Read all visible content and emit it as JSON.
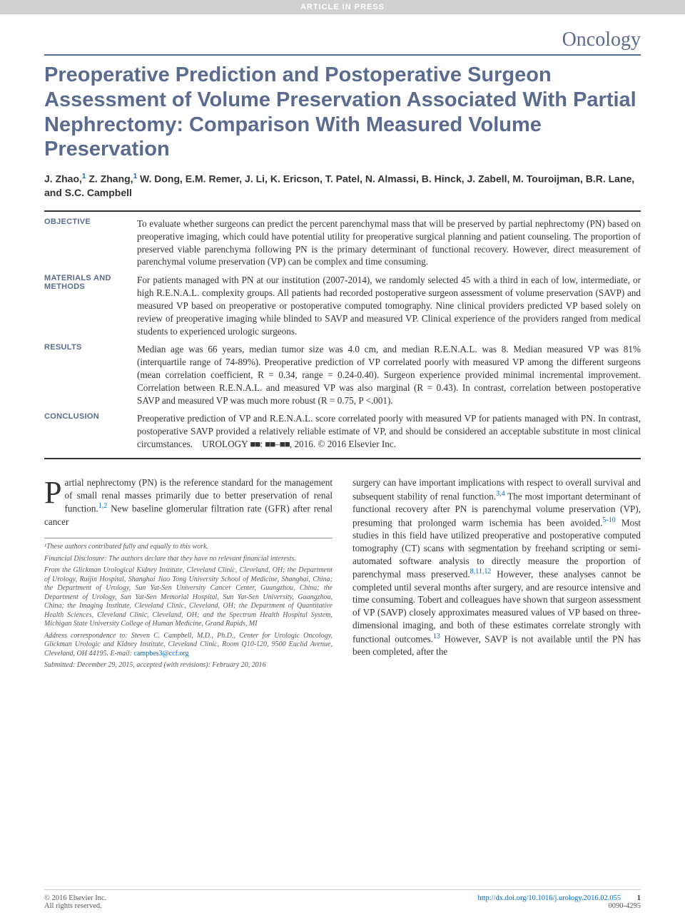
{
  "banner": "ARTICLE IN PRESS",
  "section": "Oncology",
  "title": "Preoperative Prediction and Postoperative Surgeon Assessment of Volume Preservation Associated With Partial Nephrectomy: Comparison With Measured Volume Preservation",
  "authors_html": "J. Zhao,<sup>1</sup> Z. Zhang,<sup>1</sup> W. Dong, E.M. Remer, J. Li, K. Ericson, T. Patel, N. Almassi, B. Hinck, J. Zabell, M. Touroijman, B.R. Lane, and S.C. Campbell",
  "abstract": {
    "objective": {
      "label": "OBJECTIVE",
      "text": "To evaluate whether surgeons can predict the percent parenchymal mass that will be preserved by partial nephrectomy (PN) based on preoperative imaging, which could have potential utility for preoperative surgical planning and patient counseling. The proportion of preserved viable parenchyma following PN is the primary determinant of functional recovery. However, direct measurement of parenchymal volume preservation (VP) can be complex and time consuming."
    },
    "methods": {
      "label": "MATERIALS AND METHODS",
      "text": "For patients managed with PN at our institution (2007-2014), we randomly selected 45 with a third in each of low, intermediate, or high R.E.N.A.L. complexity groups. All patients had recorded postoperative surgeon assessment of volume preservation (SAVP) and measured VP based on preoperative or postoperative computed tomography. Nine clinical providers predicted VP based solely on review of preoperative imaging while blinded to SAVP and measured VP. Clinical experience of the providers ranged from medical students to experienced urologic surgeons."
    },
    "results": {
      "label": "RESULTS",
      "text": "Median age was 66 years, median tumor size was 4.0 cm, and median R.E.N.A.L. was 8. Median measured VP was 81% (interquartile range of 74-89%). Preoperative prediction of VP correlated poorly with measured VP among the different surgeons (mean correlation coefficient, R = 0.34, range = 0.24-0.40). Surgeon experience provided minimal incremental improvement. Correlation between R.E.N.A.L. and measured VP was also marginal (R = 0.43). In contrast, correlation between postoperative SAVP and measured VP was much more robust (R = 0.75, P <.001)."
    },
    "conclusion": {
      "label": "CONCLUSION",
      "text_html": "Preoperative prediction of VP and R.E.N.A.L. score correlated poorly with measured VP for patients managed with PN. In contrast, postoperative SAVP provided a relatively reliable estimate of VP, and should be considered an acceptable substitute in most clinical circumstances. UROLOGY <span class='redact'>■■</span>: <span class='redact'>■■</span>–<span class='redact'>■■</span>, 2016. © 2016 Elsevier Inc."
    }
  },
  "body": {
    "col1_html": "<span class='dropcap'>P</span>artial nephrectomy (PN) is the reference standard for the management of small renal masses primarily due to better preservation of renal function.<span class='cite-link'>1,2</span> New baseline glomerular filtration rate (GFR) after renal cancer",
    "col2_html": "surgery can have important implications with respect to overall survival and subsequent stability of renal function.<span class='cite-link'>3,4</span> The most important determinant of functional recovery after PN is parenchymal volume preservation (VP), presuming that prolonged warm ischemia has been avoided.<span class='cite-link'>5-10</span> Most studies in this field have utilized preoperative and postoperative computed tomography (CT) scans with segmentation by freehand scripting or semi-automated software analysis to directly measure the proportion of parenchymal mass preserved.<span class='cite-link'>8,11,12</span> However, these analyses cannot be completed until several months after surgery, and are resource intensive and time consuming. Tobert and colleagues have shown that surgeon assessment of VP (SAVP) closely approximates measured values of VP based on three-dimensional imaging, and both of these estimates correlate strongly with functional outcomes.<span class='cite-link'>13</span> However, SAVP is not available until the PN has been completed, after the"
  },
  "footnotes": {
    "equal": "¹These authors contributed fully and equally to this work.",
    "disclosure": "Financial Disclosure: The authors declare that they have no relevant financial interests.",
    "affiliations": "From the Glickman Urological Kidney Institute, Cleveland Clinic, Cleveland, OH; the Department of Urology, Ruijin Hospital, Shanghai Jiao Tong University School of Medicine, Shanghai, China; the Department of Urology, Sun Yat-Sen University Cancer Center, Guangzhou, China; the Department of Urology, Sun Yat-Sen Memorial Hospital, Sun Yat-Sen University, Guangzhou, China; the Imaging Institute, Cleveland Clinic, Cleveland, OH; the Department of Quantitative Health Sciences, Cleveland Clinic, Cleveland, OH; and the Spectrum Health Hospital System, Michigan State University College of Human Medicine, Grand Rapids, MI",
    "correspondence_html": "Address correspondence to: Steven C. Campbell, M.D., Ph.D., Center for Urologic Oncology, Glickman Urologic and Kidney Institute, Cleveland Clinic, Room Q10-120, 9500 Euclid Avenue, Cleveland, OH 44195. E-mail: <span class='email-link'>campbes3@ccf.org</span>",
    "submitted": "Submitted: December 29, 2015, accepted (with revisions): February 20, 2016"
  },
  "footer": {
    "copyright": "© 2016 Elsevier Inc.",
    "rights": "All rights reserved.",
    "doi": "http://dx.doi.org/10.1016/j.urology.2016.02.055",
    "issn": "0090-4295",
    "page": "1"
  },
  "colors": {
    "accent": "#5b6b8f",
    "link": "#0066cc",
    "text": "#333333",
    "muted": "#555555",
    "banner_bg": "#d0d0d0"
  }
}
